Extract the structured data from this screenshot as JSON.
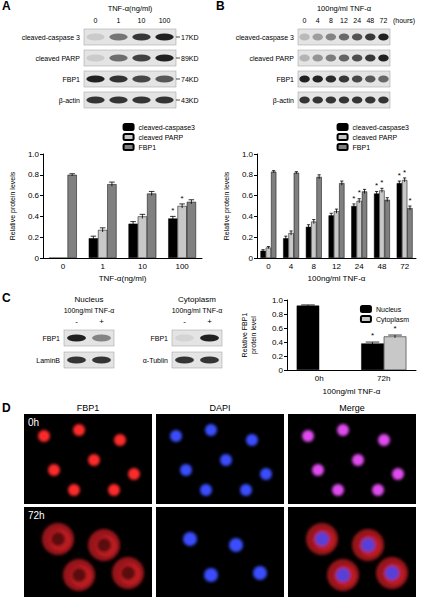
{
  "panel_letters": [
    "A",
    "B",
    "C",
    "D"
  ],
  "chart_data": [
    {
      "type": "bar",
      "x_label": "TNF-α(ng/ml)",
      "y_label": "Relative protein levels",
      "categories": [
        "0",
        "1",
        "10",
        "100"
      ],
      "series": [
        {
          "name": "cleaved-caspase3",
          "color": "#000000",
          "values": [
            0,
            0.19,
            0.33,
            0.38
          ],
          "errors": [
            0,
            0.02,
            0.02,
            0.02
          ]
        },
        {
          "name": "cleaved PARP",
          "color": "#c8c8c8",
          "values": [
            0,
            0.27,
            0.4,
            0.5
          ],
          "errors": [
            0,
            0.02,
            0.02,
            0.02
          ]
        },
        {
          "name": "FBP1",
          "color": "#808080",
          "values": [
            0.8,
            0.71,
            0.62,
            0.54
          ],
          "errors": [
            0.01,
            0.02,
            0.02,
            0.02
          ]
        }
      ],
      "annotations": [
        {
          "series": "cleaved-caspase3",
          "category": "100",
          "text": "*"
        },
        {
          "series": "cleaved PARP",
          "category": "100",
          "text": "*"
        }
      ],
      "ylim": [
        0,
        1
      ],
      "yticks": [
        0,
        0.2,
        0.4,
        0.6,
        0.8,
        {
          "value": 1,
          "label": "1.0"
        }
      ],
      "grid": false,
      "legend": "top-right"
    },
    {
      "type": "bar",
      "x_label": "100ng/ml TNF-α",
      "y_label": "Relative protein levels",
      "categories": [
        "0",
        "4",
        "8",
        "12",
        "24",
        "48",
        "72"
      ],
      "series": [
        {
          "name": "cleaved-caspase3",
          "color": "#000000",
          "values": [
            0.07,
            0.19,
            0.3,
            0.41,
            0.5,
            0.62,
            0.72
          ],
          "errors": [
            0.01,
            0.02,
            0.02,
            0.02,
            0.02,
            0.02,
            0.02
          ]
        },
        {
          "name": "cleaved PARP",
          "color": "#c8c8c8",
          "values": [
            0.1,
            0.24,
            0.35,
            0.45,
            0.55,
            0.65,
            0.75
          ],
          "errors": [
            0.01,
            0.02,
            0.02,
            0.02,
            0.02,
            0.02,
            0.02
          ]
        },
        {
          "name": "FBP1",
          "color": "#808080",
          "values": [
            0.83,
            0.82,
            0.78,
            0.72,
            0.64,
            0.56,
            0.48
          ],
          "errors": [
            0.01,
            0.01,
            0.02,
            0.02,
            0.02,
            0.02,
            0.02
          ]
        }
      ],
      "annotations": [
        {
          "series": "cleaved-caspase3",
          "category": "24",
          "text": "*"
        },
        {
          "series": "cleaved PARP",
          "category": "24",
          "text": "*"
        },
        {
          "series": "cleaved-caspase3",
          "category": "48",
          "text": "*"
        },
        {
          "series": "cleaved PARP",
          "category": "48",
          "text": "*"
        },
        {
          "series": "cleaved-caspase3",
          "category": "72",
          "text": "*"
        },
        {
          "series": "cleaved PARP",
          "category": "72",
          "text": "*"
        },
        {
          "series": "FBP1",
          "category": "72",
          "text": "*"
        }
      ],
      "ylim": [
        0,
        1
      ],
      "yticks": [
        0,
        0.2,
        0.4,
        0.6,
        0.8,
        {
          "value": 1,
          "label": "1.0"
        }
      ],
      "grid": false,
      "legend": "top-right"
    },
    {
      "type": "bar",
      "x_label": "100ng/ml TNF-α",
      "y_label": "Relative FBP1 protein level",
      "categories": [
        "0h",
        "72h"
      ],
      "series": [
        {
          "name": "Nucleus",
          "color": "#000000",
          "values": [
            0.92,
            0.38
          ],
          "errors": [
            0.01,
            0.02
          ]
        },
        {
          "name": "Cytoplasm",
          "color": "#c8c8c8",
          "values": [
            null,
            0.48
          ],
          "errors": [
            null,
            0.02
          ]
        }
      ],
      "annotations": [
        {
          "series": "Nucleus",
          "category": "72h",
          "text": "*"
        },
        {
          "series": "Cytoplasm",
          "category": "72h",
          "text": "*"
        }
      ],
      "ylim": [
        0,
        1
      ],
      "yticks": [
        0,
        0.2,
        0.4,
        0.6,
        0.8,
        {
          "value": 1,
          "label": "1.0"
        }
      ],
      "grid": false,
      "legend": "top-right"
    }
  ],
  "blots": {
    "A": {
      "header": "TNF-α(ng/ml)",
      "lanes": [
        "0",
        "1",
        "10",
        "100"
      ],
      "rows": [
        {
          "label": "cleaved-caspase 3",
          "size": "17KD"
        },
        {
          "label": "cleaved PARP",
          "size": "89KD"
        },
        {
          "label": "FBP1",
          "size": "74KD"
        },
        {
          "label": "β-actin",
          "size": "43KD"
        }
      ]
    },
    "B": {
      "header": "100ng/ml TNF-α",
      "lanes": [
        "0",
        "4",
        "8",
        "12",
        "24",
        "48",
        "72"
      ],
      "unit": "(hours)",
      "rows": [
        {
          "label": "cleaved-caspase 3"
        },
        {
          "label": "cleaved PARP"
        },
        {
          "label": "FBP1"
        },
        {
          "label": "β-actin"
        }
      ]
    },
    "C": [
      {
        "title": "Nucleus",
        "header": "100ng/ml TNF-α",
        "lanes": [
          "-",
          "+"
        ],
        "rows": [
          {
            "label": "FBP1"
          },
          {
            "label": "LaminB"
          }
        ]
      },
      {
        "title": "Cytoplasm",
        "header": "100ng/ml TNF-α",
        "lanes": [
          "-",
          "+"
        ],
        "rows": [
          {
            "label": "FBP1"
          },
          {
            "label": "α-Tublin"
          }
        ]
      }
    ]
  },
  "micrographs": {
    "columns": [
      "FBP1",
      "DAPI",
      "Merge"
    ],
    "rows": [
      "0h",
      "72h"
    ]
  }
}
